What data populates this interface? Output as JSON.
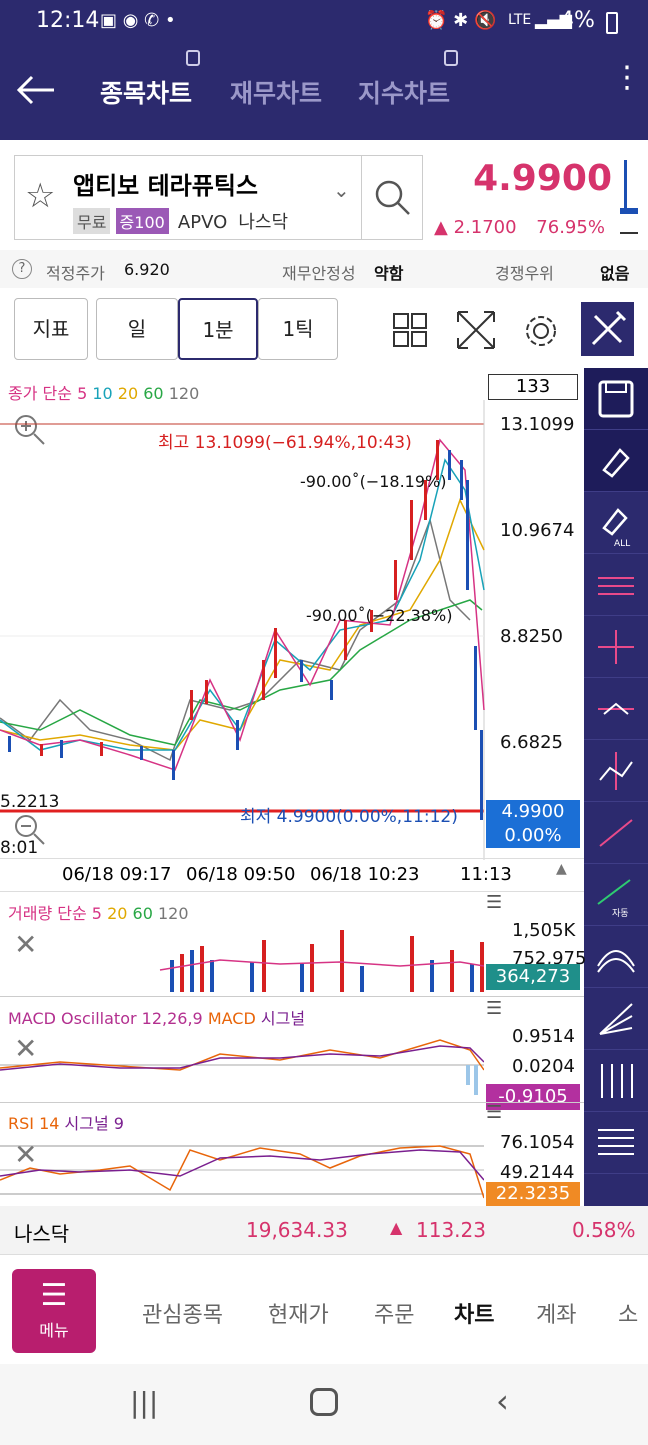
{
  "status": {
    "time": "12:14",
    "battery": "4%",
    "network": "LTE"
  },
  "header": {
    "back_icon": "back-arrow-icon",
    "tabs": [
      {
        "label": "종목차트",
        "active": true
      },
      {
        "label": "재무차트",
        "active": false
      },
      {
        "label": "지수차트",
        "active": false
      }
    ],
    "more_icon": "more-vertical-icon"
  },
  "stock": {
    "name": "앱티보 테라퓨틱스",
    "tags": [
      "무료",
      "증100"
    ],
    "ticker": "APVO",
    "market": "나스닥",
    "price": "4.9900",
    "change": "2.1700",
    "change_pct": "76.95%"
  },
  "info": {
    "fair_label": "적정주가",
    "fair_value": "6.920",
    "fin_label": "재무안정성",
    "fin_value": "약함",
    "comp_label": "경쟁우위",
    "comp_value": "없음"
  },
  "toolbar": {
    "indicator": "지표",
    "day": "일",
    "minute": "1분",
    "tick": "1틱"
  },
  "chart": {
    "legend": {
      "prefix": "종가 단순",
      "ma": [
        "5",
        "10",
        "20",
        "60",
        "120"
      ]
    },
    "count_box": "133",
    "high_label": "최고 13.1099(−61.94%,10:43)",
    "low_label": "최저 4.9900(0.00%,11:12)",
    "angle1": "-90.00˚(−18.19%)",
    "angle2": "-90.00˚(−22.38%)",
    "y_ticks": [
      "13.1099",
      "10.9674",
      "8.8250",
      "6.6825"
    ],
    "left_value": "5.2213",
    "left_time": "8:01",
    "current_price": "4.9900",
    "current_pct": "0.00%",
    "times": [
      "06/18 09:17",
      "06/18 09:50",
      "06/18 10:23",
      "11:13"
    ]
  },
  "volume": {
    "legend_prefix": "거래량 단순",
    "ma": [
      "5",
      "20",
      "60",
      "120"
    ],
    "y_ticks": [
      "1,505K",
      "752,975"
    ],
    "current": "364,273"
  },
  "macd": {
    "legend_a": "MACD Oscillator 12,26,9",
    "legend_b": "MACD",
    "legend_c": "시그널",
    "y_ticks": [
      "0.9514",
      "0.0204"
    ],
    "current": "-0.9105"
  },
  "rsi": {
    "legend_a": "RSI 14",
    "legend_b": "시그널 9",
    "y_ticks": [
      "76.1054",
      "49.2144"
    ],
    "current": "22.3235"
  },
  "index_bar": {
    "name": "나스닥",
    "value": "19,634.33",
    "change": "113.23",
    "pct": "0.58%"
  },
  "menu": {
    "button": "메뉴",
    "items": [
      "관심종목",
      "현재가",
      "주문",
      "차트",
      "계좌",
      "소"
    ],
    "active": "차트"
  },
  "colors": {
    "brand": "#2c2a6e",
    "up": "#d6336c",
    "down": "#1b4fb3"
  }
}
